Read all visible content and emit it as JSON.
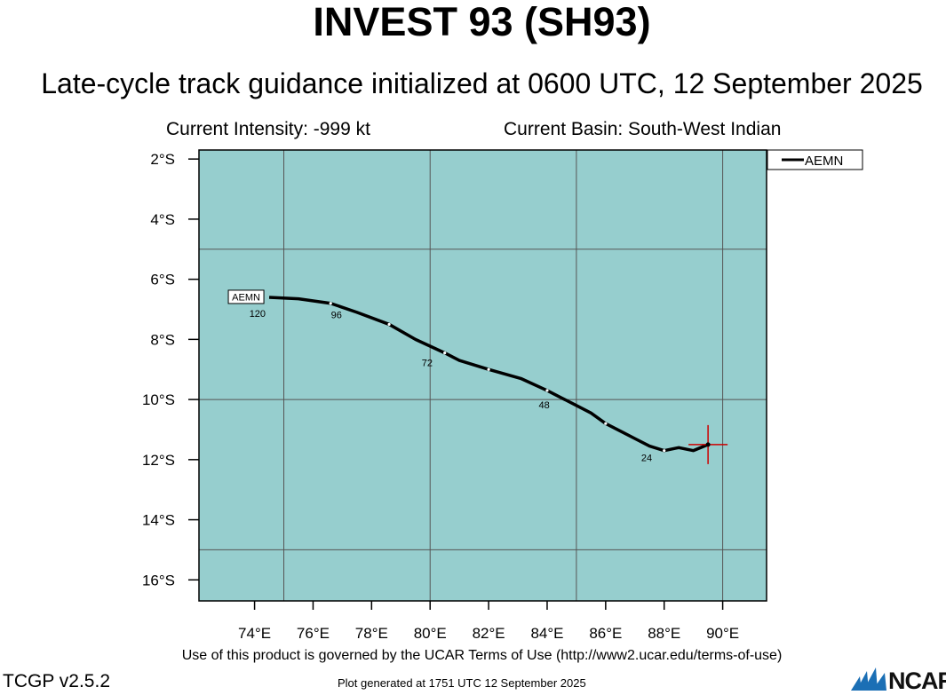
{
  "header": {
    "title": "INVEST 93 (SH93)",
    "subtitle": "Late-cycle track guidance initialized at 0600 UTC, 12 September 2025",
    "intensity": "Current Intensity: -999 kt",
    "basin": "Current Basin: South-West Indian"
  },
  "map": {
    "ocean_color": "#96cece",
    "grid_color": "#555555",
    "track_color": "#000000",
    "current_position_color": "#cc0000",
    "lon_ticks": [
      "74°E",
      "76°E",
      "78°E",
      "80°E",
      "82°E",
      "84°E",
      "86°E",
      "88°E",
      "90°E"
    ],
    "lat_ticks": [
      "2°S",
      "4°S",
      "6°S",
      "8°S",
      "10°S",
      "12°S",
      "14°S",
      "16°S"
    ],
    "lon_range": [
      72.1,
      91.5
    ],
    "lat_range": [
      -16.7,
      -1.7
    ],
    "legend": [
      {
        "name": "AEMN",
        "color": "#000000"
      }
    ],
    "tracks": [
      {
        "name": "AEMN",
        "label": "AEMN",
        "points": [
          {
            "lon": 89.5,
            "lat": -11.5
          },
          {
            "lon": 89.0,
            "lat": -11.7
          },
          {
            "lon": 88.5,
            "lat": -11.6
          },
          {
            "lon": 88.0,
            "lat": -11.7
          },
          {
            "lon": 87.5,
            "lat": -11.55
          },
          {
            "lon": 87.0,
            "lat": -11.3
          },
          {
            "lon": 86.6,
            "lat": -11.1
          },
          {
            "lon": 86.0,
            "lat": -10.8
          },
          {
            "lon": 85.5,
            "lat": -10.45
          },
          {
            "lon": 85.0,
            "lat": -10.2
          },
          {
            "lon": 84.5,
            "lat": -9.95
          },
          {
            "lon": 84.0,
            "lat": -9.7
          },
          {
            "lon": 83.1,
            "lat": -9.3
          },
          {
            "lon": 82.0,
            "lat": -9.0
          },
          {
            "lon": 81.0,
            "lat": -8.7
          },
          {
            "lon": 80.5,
            "lat": -8.45
          },
          {
            "lon": 79.5,
            "lat": -8.0
          },
          {
            "lon": 78.6,
            "lat": -7.5
          },
          {
            "lon": 77.5,
            "lat": -7.1
          },
          {
            "lon": 76.6,
            "lat": -6.8
          },
          {
            "lon": 75.5,
            "lat": -6.65
          },
          {
            "lon": 74.5,
            "lat": -6.6
          }
        ],
        "hour_labels": [
          {
            "text": "24",
            "lon": 87.4,
            "lat": -11.75
          },
          {
            "text": "48",
            "lon": 83.9,
            "lat": -10.0
          },
          {
            "text": "72",
            "lon": 79.9,
            "lat": -8.6
          },
          {
            "text": "96",
            "lon": 76.8,
            "lat": -7.0
          },
          {
            "text": "120",
            "lon": 74.1,
            "lat": -6.95
          }
        ]
      }
    ],
    "current_position": {
      "lon": 89.5,
      "lat": -11.5
    }
  },
  "footer": {
    "terms": "Use of this product is governed by the UCAR Terms of Use (http://www2.ucar.edu/terms-of-use)",
    "version": "TCGP v2.5.2",
    "generated": "Plot generated at 1751 UTC   12 September 2025",
    "logo_text": "NCAR"
  }
}
